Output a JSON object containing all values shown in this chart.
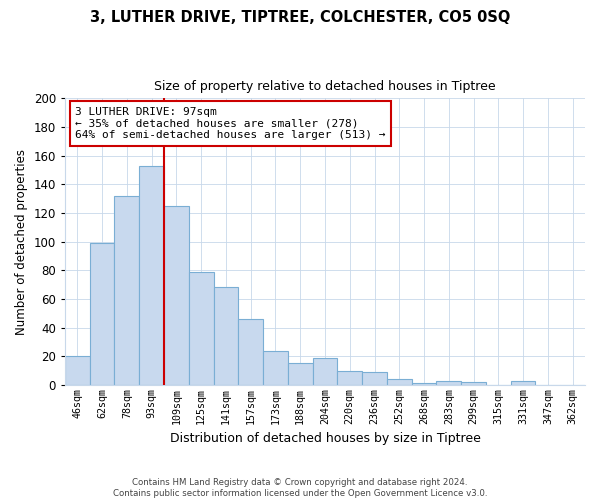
{
  "title": "3, LUTHER DRIVE, TIPTREE, COLCHESTER, CO5 0SQ",
  "subtitle": "Size of property relative to detached houses in Tiptree",
  "xlabel": "Distribution of detached houses by size in Tiptree",
  "ylabel": "Number of detached properties",
  "bar_labels": [
    "46sqm",
    "62sqm",
    "78sqm",
    "93sqm",
    "109sqm",
    "125sqm",
    "141sqm",
    "157sqm",
    "173sqm",
    "188sqm",
    "204sqm",
    "220sqm",
    "236sqm",
    "252sqm",
    "268sqm",
    "283sqm",
    "299sqm",
    "315sqm",
    "331sqm",
    "347sqm",
    "362sqm"
  ],
  "bar_values": [
    20,
    99,
    132,
    153,
    125,
    79,
    68,
    46,
    24,
    15,
    19,
    10,
    9,
    4,
    1,
    3,
    2,
    0,
    3,
    0,
    0
  ],
  "bar_color": "#c8d9ee",
  "bar_edge_color": "#7aaed4",
  "vline_color": "#cc0000",
  "annotation_line1": "3 LUTHER DRIVE: 97sqm",
  "annotation_line2": "← 35% of detached houses are smaller (278)",
  "annotation_line3": "64% of semi-detached houses are larger (513) →",
  "annotation_box_color": "#ffffff",
  "annotation_box_edge": "#cc0000",
  "ylim": [
    0,
    200
  ],
  "yticks": [
    0,
    20,
    40,
    60,
    80,
    100,
    120,
    140,
    160,
    180,
    200
  ],
  "footer_text": "Contains HM Land Registry data © Crown copyright and database right 2024.\nContains public sector information licensed under the Open Government Licence v3.0.",
  "background_color": "#ffffff",
  "grid_color": "#c8d8ea"
}
